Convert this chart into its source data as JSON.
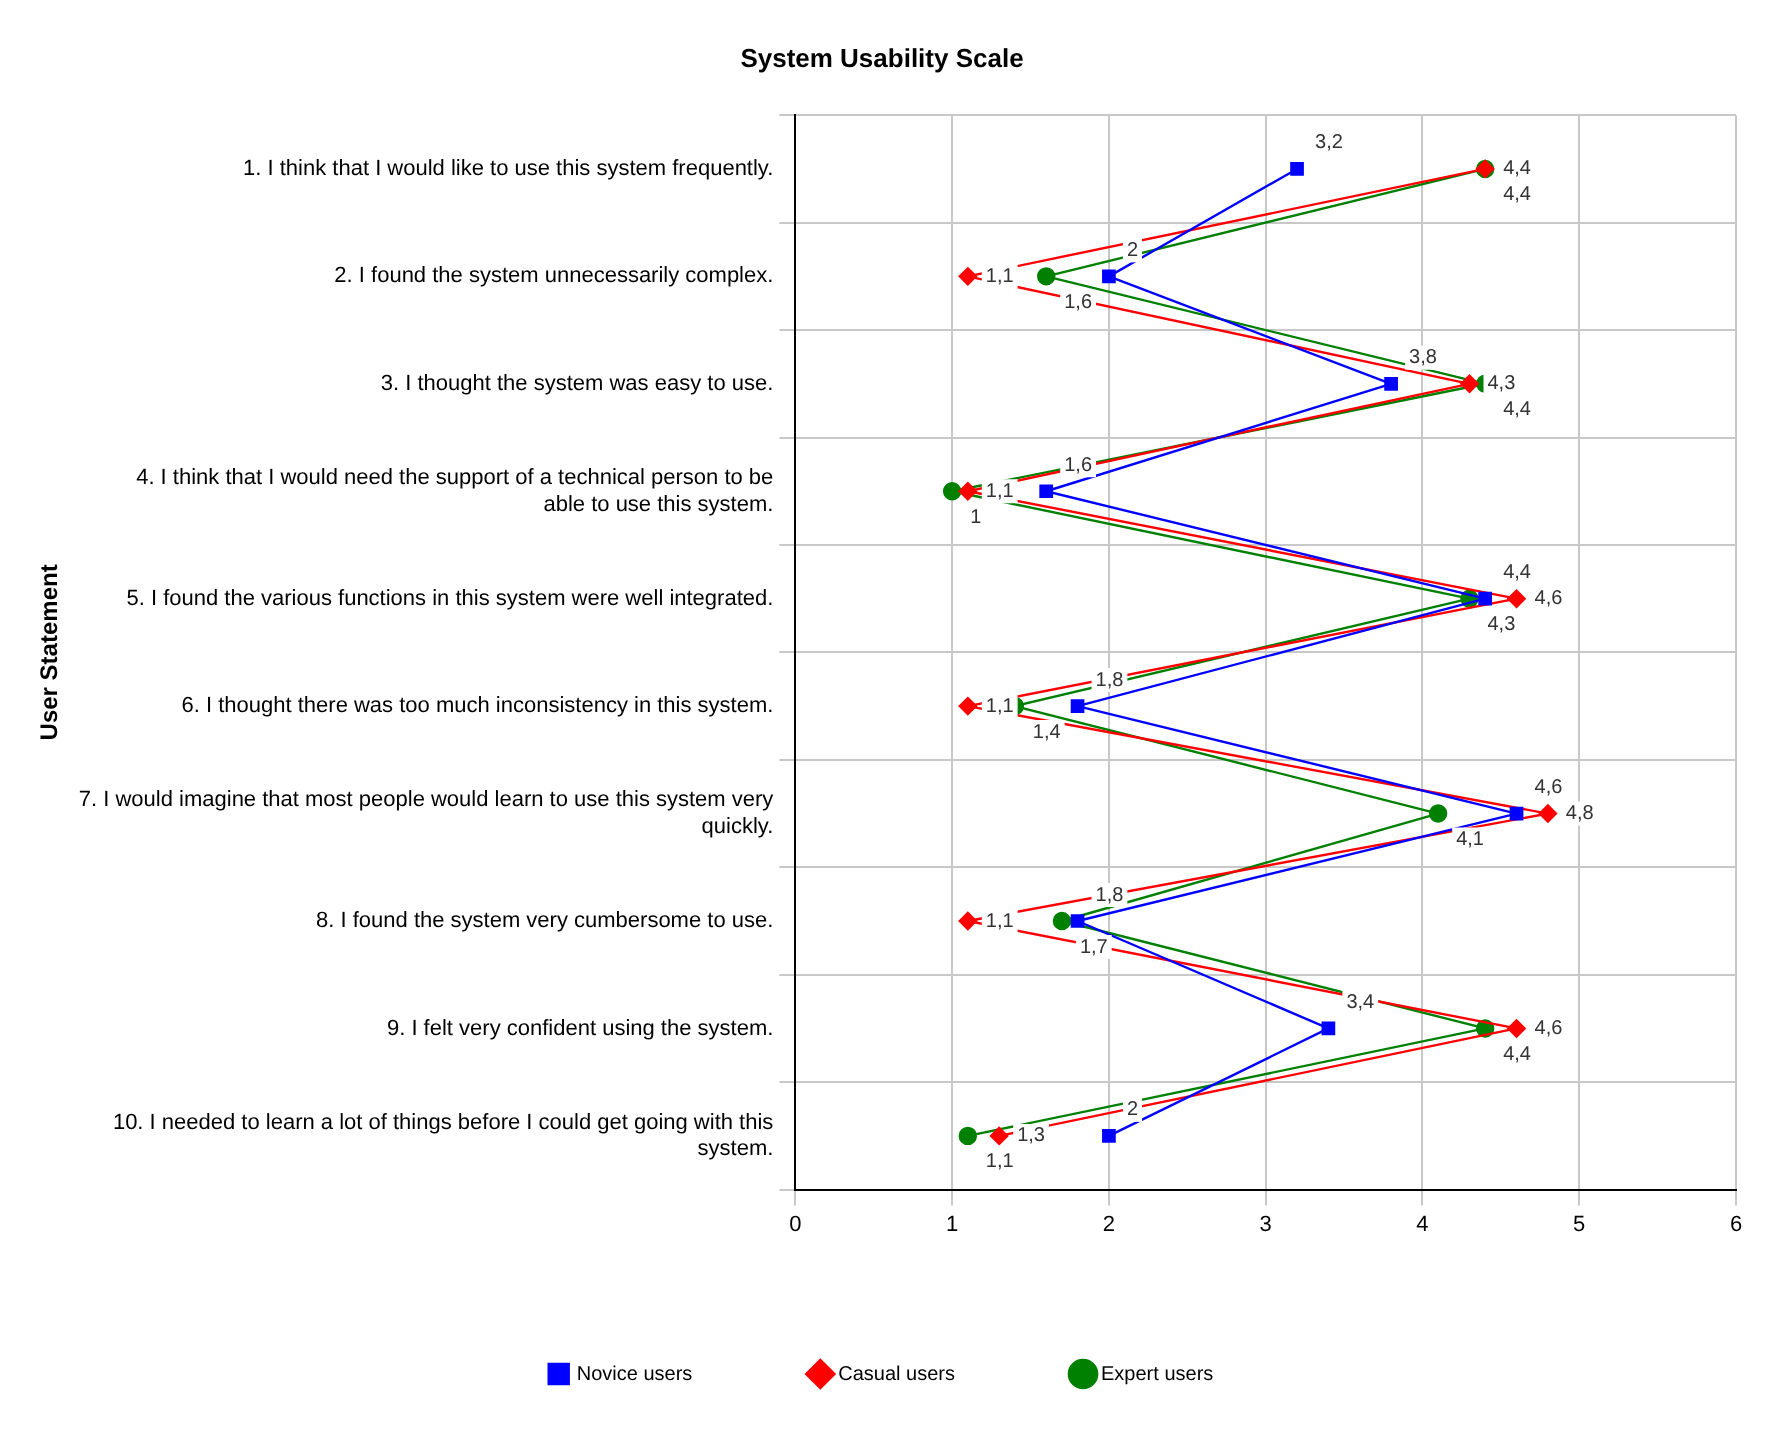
{
  "chart_data": {
    "type": "line",
    "title": "System Usability Scale",
    "ylabel": "User Statement",
    "categories": [
      "1. I think that I would like to use this system frequently.",
      "2. I found the system unnecessarily complex.",
      "3. I thought the system was easy to use.",
      "4. I think that I would need the support of a technical person to be able to use this system.",
      "5. I found the various functions in this system were well integrated.",
      "6. I thought there was too much inconsistency in this system.",
      "7. I would imagine that most people would learn to use this system very quickly.",
      "8. I found the system very cumbersome to use.",
      "9. I felt very confident using the system.",
      "10. I needed to learn a lot of things before I could get going with this system."
    ],
    "orientation": "horizontal",
    "xlim": [
      0,
      6
    ],
    "xticks": [
      0,
      1,
      2,
      3,
      4,
      5,
      6
    ],
    "grid": true,
    "legend": "bottom",
    "line_style": "solid",
    "series": [
      {
        "name": "Novice users",
        "color": "#0000ff",
        "marker": "square",
        "values": [
          3.2,
          2,
          3.8,
          1.6,
          4.4,
          1.8,
          4.6,
          1.8,
          3.4,
          2
        ],
        "value_labels": [
          "3,2",
          "2",
          "3,8",
          "1,6",
          "4,4",
          "1,8",
          "4,6",
          "1,8",
          "3,4",
          "2"
        ]
      },
      {
        "name": "Casual users",
        "color": "#ff0000",
        "marker": "diamond",
        "values": [
          4.4,
          1.1,
          4.3,
          1.1,
          4.6,
          1.1,
          4.8,
          1.1,
          4.6,
          1.3
        ],
        "value_labels": [
          "4,4",
          "1,1",
          "4,3",
          "1,1",
          "4,6",
          "1,1",
          "4,8",
          "1,1",
          "4,6",
          "1,3"
        ]
      },
      {
        "name": "Expert users",
        "color": "#008000",
        "marker": "circle",
        "values": [
          4.4,
          1.6,
          4.4,
          1.0,
          4.3,
          1.4,
          4.1,
          1.7,
          4.4,
          1.1
        ],
        "value_labels": [
          "4,4",
          "1,6",
          "4,4",
          "1",
          "4,3",
          "1,4",
          "4,1",
          "1,7",
          "4,4",
          "1,1"
        ]
      }
    ]
  }
}
